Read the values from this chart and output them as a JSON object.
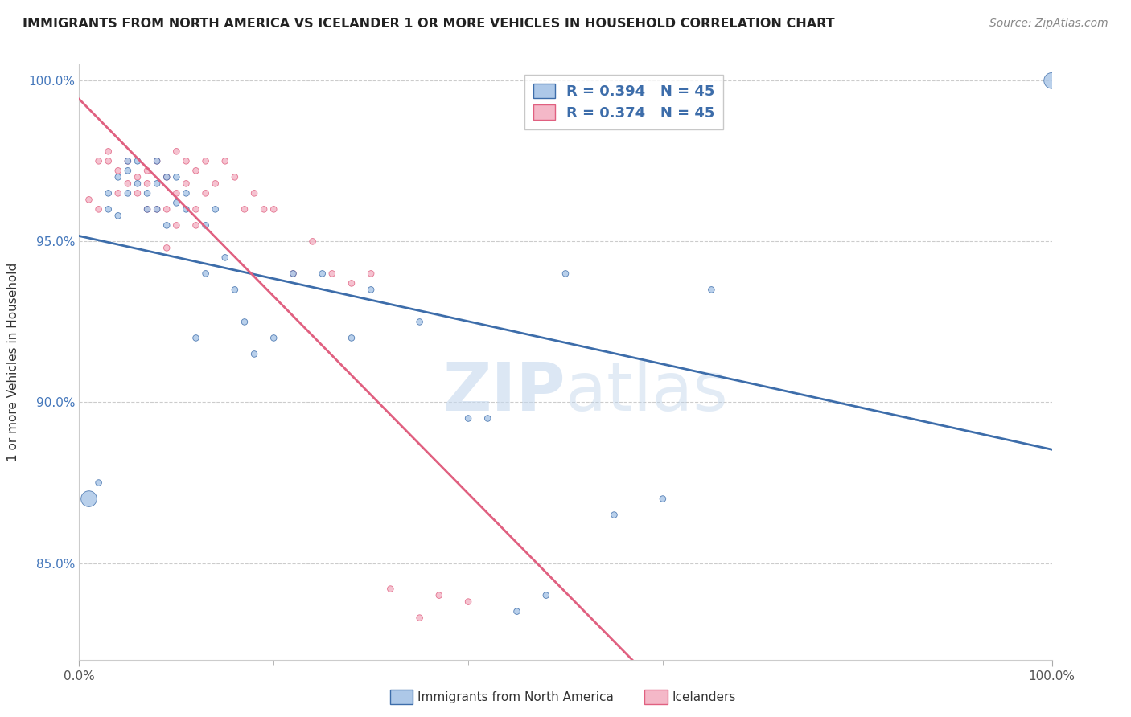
{
  "title": "IMMIGRANTS FROM NORTH AMERICA VS ICELANDER 1 OR MORE VEHICLES IN HOUSEHOLD CORRELATION CHART",
  "source": "Source: ZipAtlas.com",
  "ylabel": "1 or more Vehicles in Household",
  "xlim": [
    0.0,
    1.0
  ],
  "ylim": [
    0.82,
    1.005
  ],
  "x_tick_labels": [
    "0.0%",
    "100.0%"
  ],
  "x_tick_minor": [
    0.2,
    0.4,
    0.6,
    0.8
  ],
  "y_tick_labels": [
    "85.0%",
    "90.0%",
    "95.0%",
    "100.0%"
  ],
  "y_tick_values": [
    0.85,
    0.9,
    0.95,
    1.0
  ],
  "legend_label_blue": "Immigrants from North America",
  "legend_label_pink": "Icelanders",
  "R_blue": 0.394,
  "N_blue": 45,
  "R_pink": 0.374,
  "N_pink": 45,
  "blue_color": "#adc8e8",
  "pink_color": "#f4b8c8",
  "line_blue": "#3d6daa",
  "line_pink": "#e06080",
  "watermark_zip": "ZIP",
  "watermark_atlas": "atlas",
  "blue_x": [
    0.01,
    0.02,
    0.03,
    0.03,
    0.04,
    0.04,
    0.05,
    0.05,
    0.05,
    0.06,
    0.06,
    0.07,
    0.07,
    0.08,
    0.08,
    0.08,
    0.09,
    0.09,
    0.1,
    0.1,
    0.11,
    0.11,
    0.12,
    0.13,
    0.13,
    0.14,
    0.15,
    0.16,
    0.17,
    0.18,
    0.2,
    0.22,
    0.25,
    0.28,
    0.3,
    0.35,
    0.4,
    0.42,
    0.45,
    0.48,
    0.5,
    0.55,
    0.6,
    0.65,
    1.0
  ],
  "blue_y": [
    0.87,
    0.875,
    0.96,
    0.965,
    0.958,
    0.97,
    0.972,
    0.965,
    0.975,
    0.968,
    0.975,
    0.96,
    0.965,
    0.975,
    0.968,
    0.96,
    0.955,
    0.97,
    0.962,
    0.97,
    0.96,
    0.965,
    0.92,
    0.94,
    0.955,
    0.96,
    0.945,
    0.935,
    0.925,
    0.915,
    0.92,
    0.94,
    0.94,
    0.92,
    0.935,
    0.925,
    0.895,
    0.895,
    0.835,
    0.84,
    0.94,
    0.865,
    0.87,
    0.935,
    1.0
  ],
  "pink_x": [
    0.01,
    0.02,
    0.02,
    0.03,
    0.03,
    0.04,
    0.04,
    0.05,
    0.05,
    0.06,
    0.06,
    0.07,
    0.07,
    0.07,
    0.08,
    0.08,
    0.09,
    0.09,
    0.1,
    0.1,
    0.11,
    0.11,
    0.12,
    0.12,
    0.13,
    0.13,
    0.14,
    0.15,
    0.16,
    0.17,
    0.18,
    0.19,
    0.2,
    0.22,
    0.24,
    0.26,
    0.28,
    0.3,
    0.32,
    0.35,
    0.37,
    0.4,
    0.12,
    0.09,
    0.1
  ],
  "pink_y": [
    0.963,
    0.96,
    0.975,
    0.975,
    0.978,
    0.965,
    0.972,
    0.968,
    0.975,
    0.97,
    0.965,
    0.972,
    0.96,
    0.968,
    0.975,
    0.96,
    0.96,
    0.97,
    0.978,
    0.965,
    0.975,
    0.968,
    0.972,
    0.96,
    0.975,
    0.965,
    0.968,
    0.975,
    0.97,
    0.96,
    0.965,
    0.96,
    0.96,
    0.94,
    0.95,
    0.94,
    0.937,
    0.94,
    0.842,
    0.833,
    0.84,
    0.838,
    0.955,
    0.948,
    0.955
  ],
  "blue_sizes": [
    200,
    30,
    30,
    30,
    30,
    30,
    30,
    30,
    30,
    30,
    30,
    30,
    30,
    30,
    30,
    30,
    30,
    30,
    30,
    30,
    30,
    30,
    30,
    30,
    30,
    30,
    30,
    30,
    30,
    30,
    30,
    30,
    30,
    30,
    30,
    30,
    30,
    30,
    30,
    30,
    30,
    30,
    30,
    30,
    200
  ],
  "pink_sizes": [
    30,
    30,
    30,
    30,
    30,
    30,
    30,
    30,
    30,
    30,
    30,
    30,
    30,
    30,
    30,
    30,
    30,
    30,
    30,
    30,
    30,
    30,
    30,
    30,
    30,
    30,
    30,
    30,
    30,
    30,
    30,
    30,
    30,
    30,
    30,
    30,
    30,
    30,
    30,
    30,
    30,
    30,
    30,
    30,
    30
  ]
}
